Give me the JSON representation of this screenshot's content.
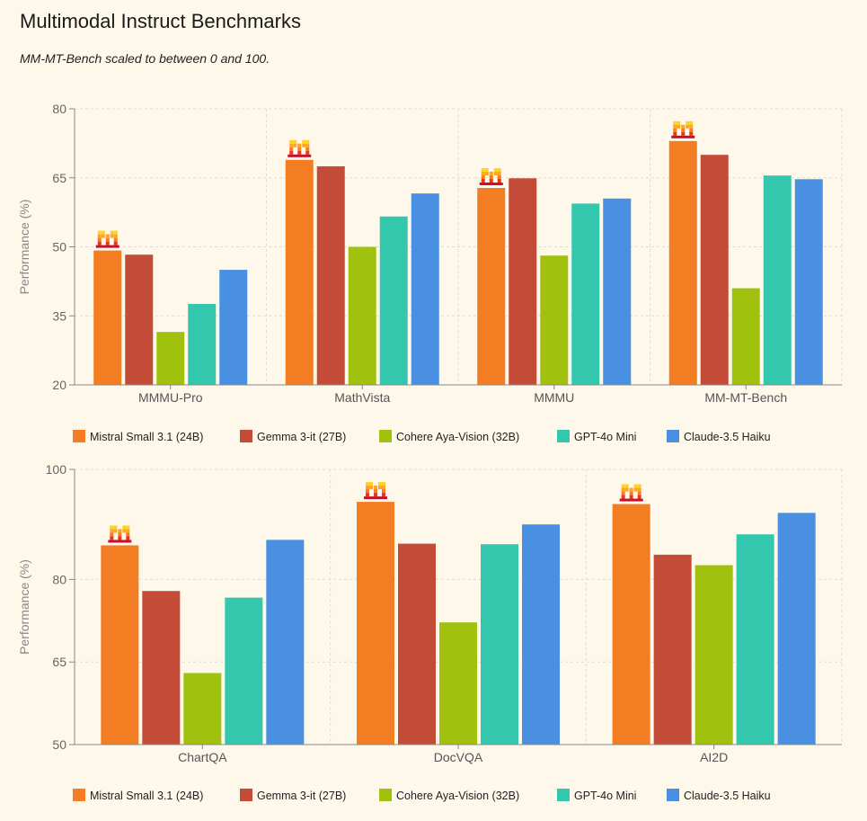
{
  "title": "Multimodal Instruct Benchmarks",
  "subtitle": "MM-MT-Bench scaled to between 0 and 100.",
  "colors": {
    "background": "#fdf8ea",
    "grid": "#dcdcdc",
    "axis": "#888888"
  },
  "chart_data": [
    {
      "type": "bar",
      "ylabel": "Performance (%)",
      "ylim": [
        20,
        80
      ],
      "yticks": [
        20,
        35,
        50,
        65,
        80
      ],
      "grid": true,
      "legend_position": "bottom",
      "categories": [
        "MMMU-Pro",
        "MathVista",
        "MMMU",
        "MM-MT-Bench"
      ],
      "series": [
        {
          "name": "Mistral Small 3.1 (24B)",
          "color": "#f27d22",
          "values": [
            49.2,
            68.9,
            62.8,
            73.0
          ]
        },
        {
          "name": "Gemma 3-it (27B)",
          "color": "#c44b38",
          "values": [
            48.3,
            67.5,
            64.9,
            70.0
          ]
        },
        {
          "name": "Cohere Aya-Vision (32B)",
          "color": "#a0c20e",
          "values": [
            31.5,
            50.0,
            48.1,
            41.0
          ]
        },
        {
          "name": "GPT-4o Mini",
          "color": "#33c7ae",
          "values": [
            37.6,
            56.6,
            59.4,
            65.5
          ]
        },
        {
          "name": "Claude-3.5 Haiku",
          "color": "#4a90e2",
          "values": [
            45.0,
            61.6,
            60.5,
            64.7
          ]
        }
      ],
      "badge_series": "Mistral Small 3.1 (24B)",
      "badge_icon": "mistral-logo-icon"
    },
    {
      "type": "bar",
      "ylabel": "Performance (%)",
      "ylim": [
        50,
        100
      ],
      "yticks": [
        50,
        65,
        80,
        100
      ],
      "grid": true,
      "legend_position": "bottom",
      "categories": [
        "ChartQA",
        "DocVQA",
        "AI2D"
      ],
      "series": [
        {
          "name": "Mistral Small 3.1 (24B)",
          "color": "#f27d22",
          "values": [
            86.2,
            94.1,
            93.7
          ]
        },
        {
          "name": "Gemma 3-it (27B)",
          "color": "#c44b38",
          "values": [
            77.9,
            86.5,
            84.5
          ]
        },
        {
          "name": "Cohere Aya-Vision (32B)",
          "color": "#a0c20e",
          "values": [
            63.0,
            72.2,
            82.6
          ]
        },
        {
          "name": "GPT-4o Mini",
          "color": "#33c7ae",
          "values": [
            76.7,
            86.4,
            88.2
          ]
        },
        {
          "name": "Claude-3.5 Haiku",
          "color": "#4a90e2",
          "values": [
            87.2,
            90.0,
            92.1
          ]
        }
      ],
      "badge_series": "Mistral Small 3.1 (24B)",
      "badge_icon": "mistral-logo-icon"
    }
  ]
}
